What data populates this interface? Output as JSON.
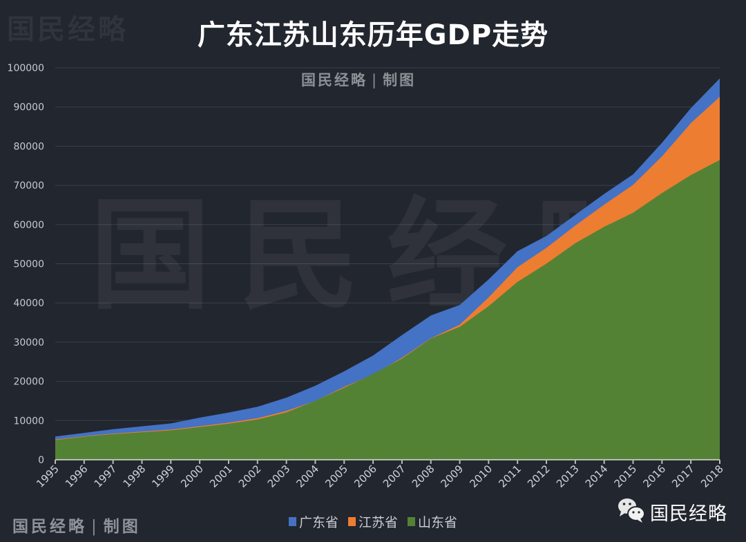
{
  "title": "广东江苏山东历年GDP走势",
  "watermark": {
    "corner": "国民经略",
    "center": "国民经略",
    "credit_brand": "国民经略",
    "credit_separator": "|",
    "credit_suffix": "制图"
  },
  "wechat": {
    "icon": "wechat-icon",
    "name": "国民经略"
  },
  "colors": {
    "background": "#22262f",
    "guangdong": "#4472c4",
    "jiangsu": "#ed7d31",
    "shandong": "#548235",
    "grid": "#3a3f49",
    "axis": "#b9bdb5"
  },
  "legend": [
    {
      "label": "广东省",
      "color": "#4472c4"
    },
    {
      "label": "江苏省",
      "color": "#ed7d31"
    },
    {
      "label": "山东省",
      "color": "#548235"
    }
  ],
  "chart_data": {
    "type": "area",
    "title": "广东江苏山东历年GDP走势",
    "xlabel": "",
    "ylabel": "",
    "ylim": [
      0,
      100000
    ],
    "yticks": [
      0,
      10000,
      20000,
      30000,
      40000,
      50000,
      60000,
      70000,
      80000,
      90000,
      100000
    ],
    "grid": true,
    "legend_position": "bottom",
    "overlapping": true,
    "categories": [
      "1995",
      "1996",
      "1997",
      "1998",
      "1999",
      "2000",
      "2001",
      "2002",
      "2003",
      "2004",
      "2005",
      "2006",
      "2007",
      "2008",
      "2009",
      "2010",
      "2011",
      "2012",
      "2013",
      "2014",
      "2015",
      "2016",
      "2017",
      "2018"
    ],
    "series": [
      {
        "name": "广东省",
        "values": [
          5934,
          6835,
          7775,
          8531,
          9251,
          10741,
          12039,
          13502,
          15845,
          18865,
          22557,
          26588,
          31777,
          36797,
          39483,
          46013,
          53210,
          57068,
          62475,
          67810,
          72813,
          80855,
          89705,
          97278
        ]
      },
      {
        "name": "江苏省",
        "values": [
          5155,
          6004,
          6680,
          7200,
          7698,
          8554,
          9457,
          10607,
          12443,
          15004,
          18599,
          21742,
          26018,
          30982,
          34457,
          41425,
          49110,
          54058,
          59753,
          65088,
          70116,
          77388,
          85870,
          92595
        ]
      },
      {
        "name": "山东省",
        "values": [
          5002,
          5883,
          6538,
          7021,
          7493,
          8338,
          9195,
          10276,
          12078,
          15022,
          18367,
          21900,
          25777,
          30933,
          33897,
          39170,
          45362,
          50013,
          55230,
          59427,
          63002,
          68024,
          72634,
          76470
        ]
      }
    ]
  }
}
